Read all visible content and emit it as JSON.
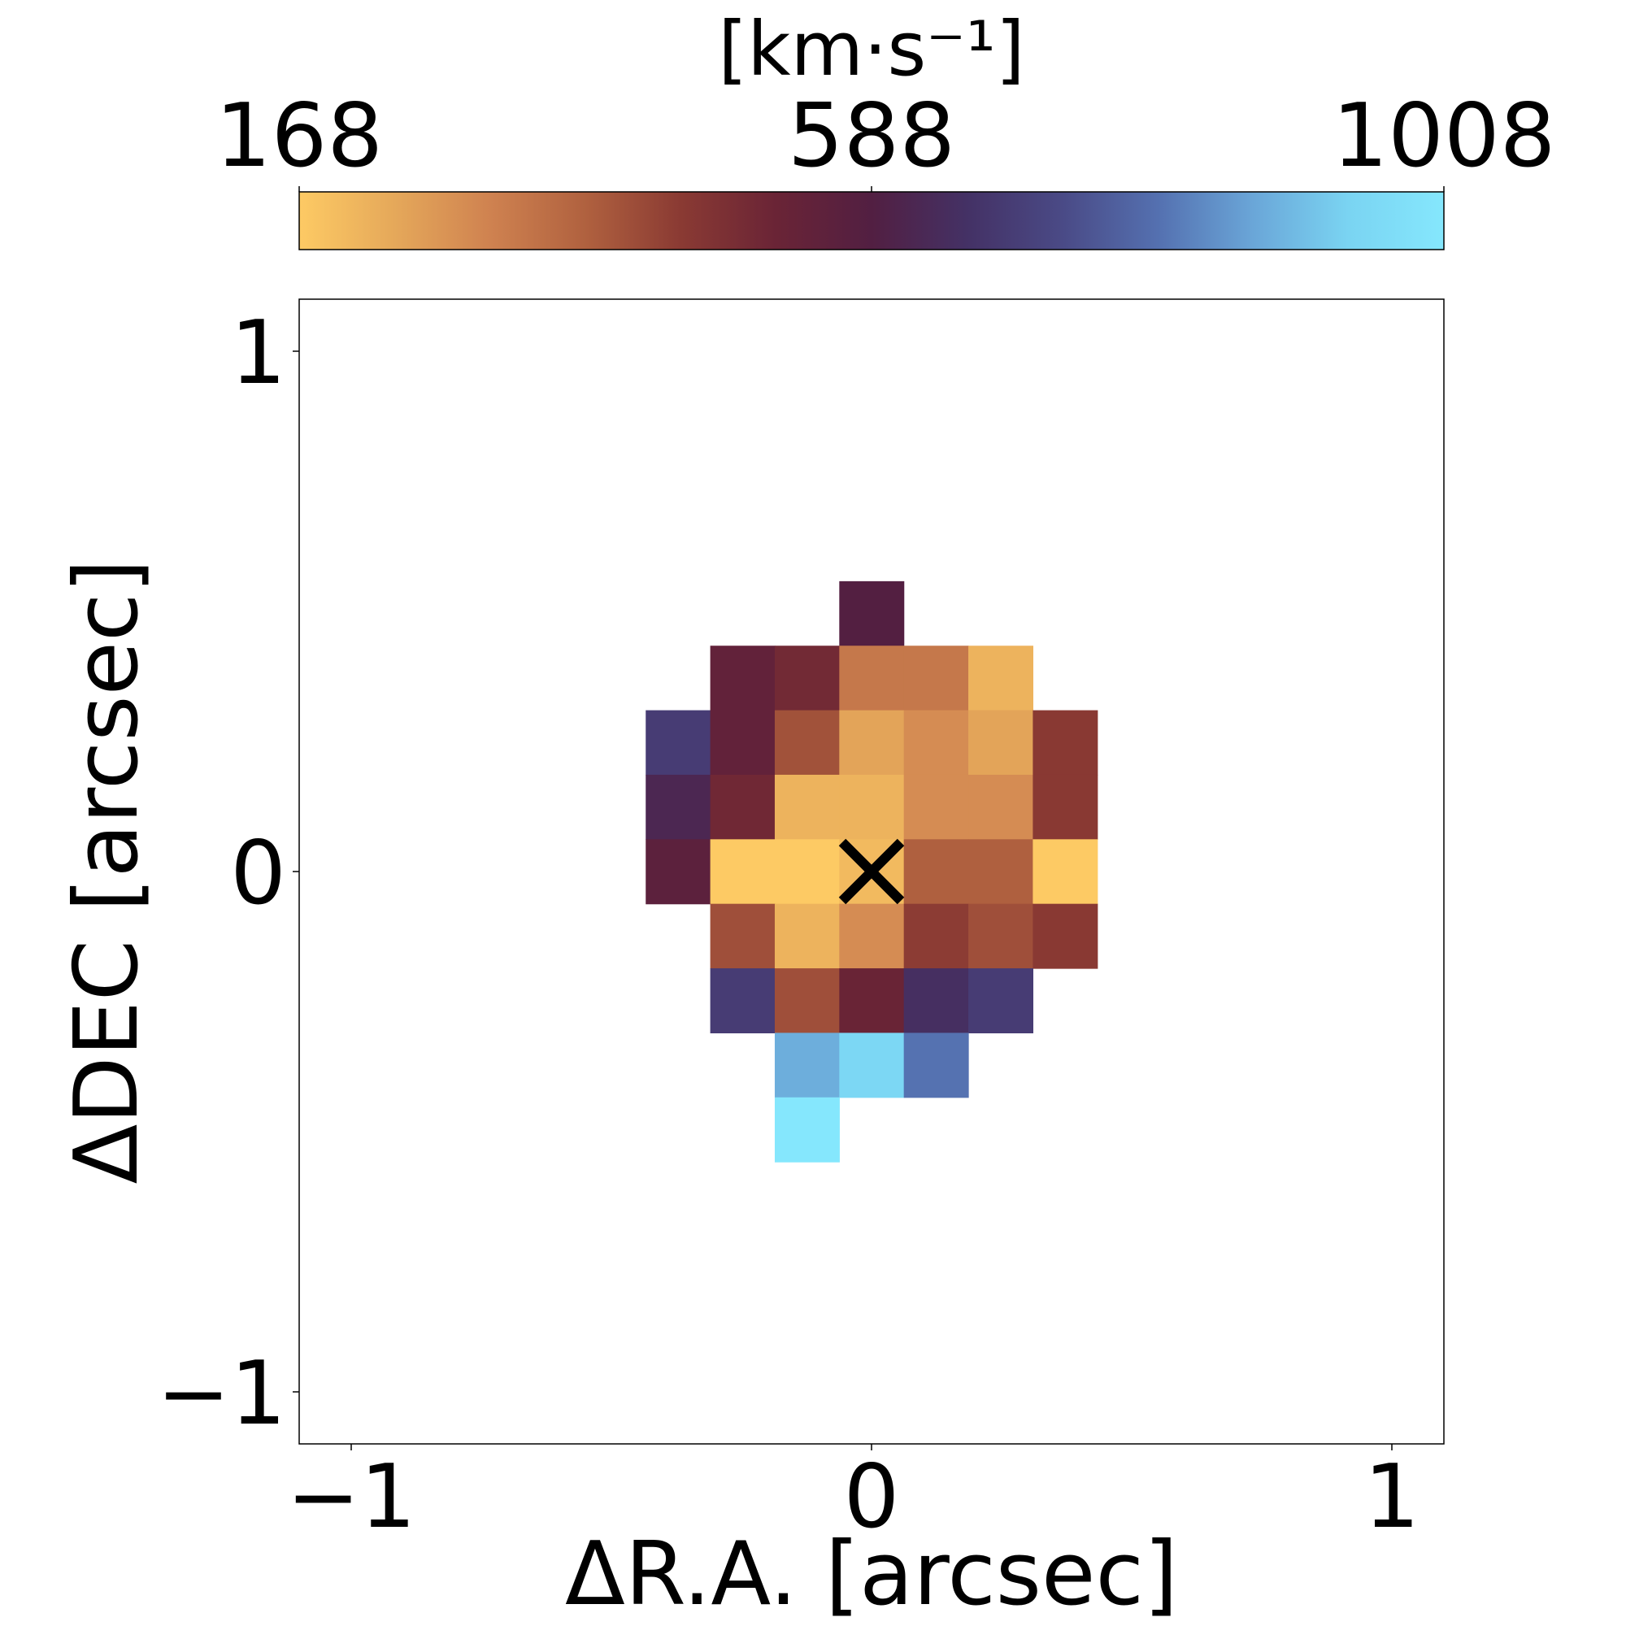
{
  "chart_data": {
    "type": "heatmap",
    "xlabel": "ΔR.A. [arcsec]",
    "ylabel": "ΔDEC [arcsec]",
    "xlim": [
      -1.1,
      1.1
    ],
    "ylim": [
      -1.1,
      1.1
    ],
    "x_ticks": [
      -1,
      0,
      1
    ],
    "x_tick_labels": [
      "−1",
      "0",
      "1"
    ],
    "y_ticks": [
      -1,
      0,
      1
    ],
    "y_tick_labels": [
      "−1",
      "0",
      "1"
    ],
    "pixel_size": 0.124,
    "colorbar": {
      "label": "[km·s⁻¹]",
      "range": [
        168,
        1008
      ],
      "ticks": [
        168,
        588,
        1008
      ],
      "tick_labels": [
        "168",
        "588",
        "1008"
      ],
      "placement": "top",
      "colors": [
        "#fdca64",
        "#e5a85a",
        "#cf8250",
        "#b0613f",
        "#8a3a33",
        "#6a2436",
        "#521f42",
        "#443165",
        "#4a4a86",
        "#5470b0",
        "#6aa6d8",
        "#7ad4f2",
        "#85e7fd"
      ]
    },
    "pixels": [
      {
        "x": 0.0,
        "y": 0.496,
        "value": 585
      },
      {
        "x": -0.248,
        "y": 0.372,
        "value": 540
      },
      {
        "x": -0.124,
        "y": 0.372,
        "value": 500
      },
      {
        "x": 0.0,
        "y": 0.372,
        "value": 330
      },
      {
        "x": 0.124,
        "y": 0.372,
        "value": 330
      },
      {
        "x": 0.248,
        "y": 0.372,
        "value": 215
      },
      {
        "x": -0.372,
        "y": 0.248,
        "value": 690
      },
      {
        "x": -0.248,
        "y": 0.248,
        "value": 540
      },
      {
        "x": -0.124,
        "y": 0.248,
        "value": 405
      },
      {
        "x": 0.0,
        "y": 0.248,
        "value": 245
      },
      {
        "x": 0.124,
        "y": 0.248,
        "value": 290
      },
      {
        "x": 0.248,
        "y": 0.248,
        "value": 245
      },
      {
        "x": 0.372,
        "y": 0.248,
        "value": 450
      },
      {
        "x": -0.372,
        "y": 0.124,
        "value": 620
      },
      {
        "x": -0.248,
        "y": 0.124,
        "value": 505
      },
      {
        "x": -0.124,
        "y": 0.124,
        "value": 215
      },
      {
        "x": 0.0,
        "y": 0.124,
        "value": 215
      },
      {
        "x": 0.124,
        "y": 0.124,
        "value": 290
      },
      {
        "x": 0.248,
        "y": 0.124,
        "value": 290
      },
      {
        "x": 0.372,
        "y": 0.124,
        "value": 450
      },
      {
        "x": -0.372,
        "y": 0.0,
        "value": 560
      },
      {
        "x": -0.248,
        "y": 0.0,
        "value": 168
      },
      {
        "x": -0.124,
        "y": 0.0,
        "value": 168
      },
      {
        "x": 0.0,
        "y": 0.0,
        "value": 200
      },
      {
        "x": 0.124,
        "y": 0.0,
        "value": 380
      },
      {
        "x": 0.248,
        "y": 0.0,
        "value": 380
      },
      {
        "x": 0.372,
        "y": 0.0,
        "value": 168
      },
      {
        "x": -0.248,
        "y": -0.124,
        "value": 410
      },
      {
        "x": -0.124,
        "y": -0.124,
        "value": 215
      },
      {
        "x": 0.0,
        "y": -0.124,
        "value": 290
      },
      {
        "x": 0.124,
        "y": -0.124,
        "value": 445
      },
      {
        "x": 0.248,
        "y": -0.124,
        "value": 410
      },
      {
        "x": 0.372,
        "y": -0.124,
        "value": 450
      },
      {
        "x": -0.248,
        "y": -0.248,
        "value": 690
      },
      {
        "x": -0.124,
        "y": -0.248,
        "value": 410
      },
      {
        "x": 0.0,
        "y": -0.248,
        "value": 520
      },
      {
        "x": 0.124,
        "y": -0.248,
        "value": 650
      },
      {
        "x": 0.248,
        "y": -0.248,
        "value": 690
      },
      {
        "x": -0.124,
        "y": -0.372,
        "value": 880
      },
      {
        "x": 0.0,
        "y": -0.372,
        "value": 950
      },
      {
        "x": 0.124,
        "y": -0.372,
        "value": 800
      },
      {
        "x": -0.124,
        "y": -0.496,
        "value": 1008
      }
    ],
    "marker": {
      "x": 0,
      "y": 0,
      "symbol": "×"
    }
  }
}
